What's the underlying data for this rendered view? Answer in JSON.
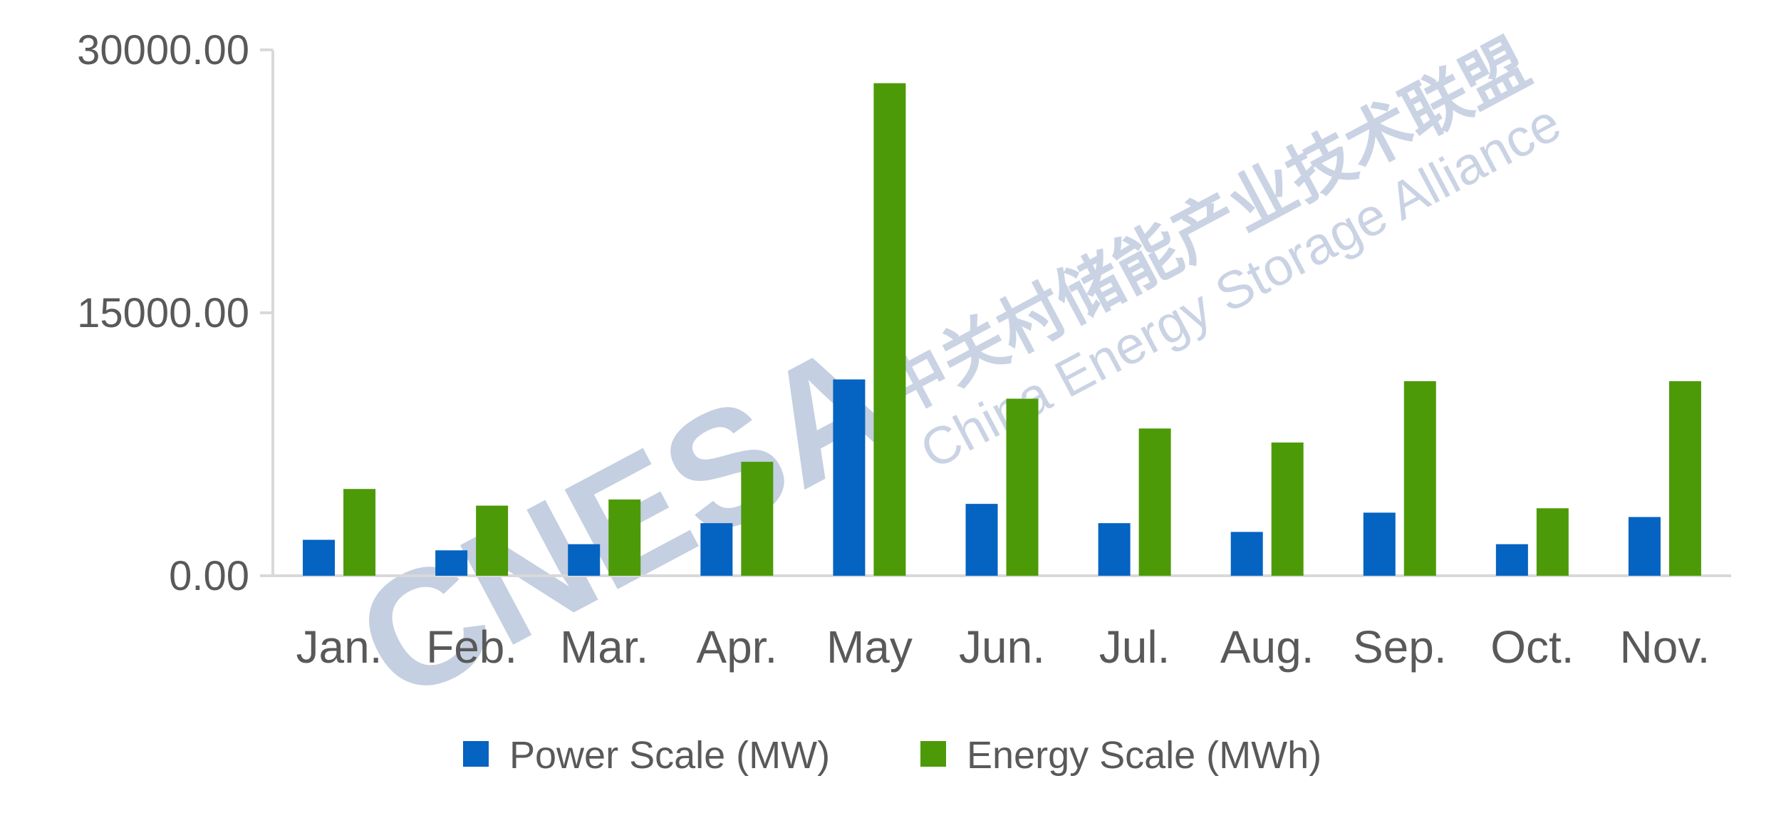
{
  "chart_data": {
    "type": "bar",
    "categories": [
      "Jan.",
      "Feb.",
      "Mar.",
      "Apr.",
      "May",
      "Jun.",
      "Jul.",
      "Aug.",
      "Sep.",
      "Oct.",
      "Nov."
    ],
    "series": [
      {
        "name": "Power Scale (MW)",
        "color": "#0563c1",
        "values": [
          2050,
          1450,
          1800,
          3000,
          11200,
          4100,
          3000,
          2500,
          3600,
          1800,
          3350
        ]
      },
      {
        "name": "Energy Scale (MWh)",
        "color": "#4d9a08",
        "values": [
          4950,
          4000,
          4350,
          6500,
          28100,
          10100,
          8400,
          7600,
          11100,
          3850,
          11100
        ]
      }
    ],
    "yticks": [
      "0.00",
      "15000.00",
      "30000.00"
    ],
    "ylim": [
      0,
      30000
    ],
    "grid": false,
    "legend": "bottom",
    "title": "",
    "xlabel": "",
    "ylabel": ""
  },
  "watermark": {
    "logo": "CNESA",
    "chinese": "中关村储能产业技术联盟",
    "english": "China Energy Storage Alliance"
  }
}
